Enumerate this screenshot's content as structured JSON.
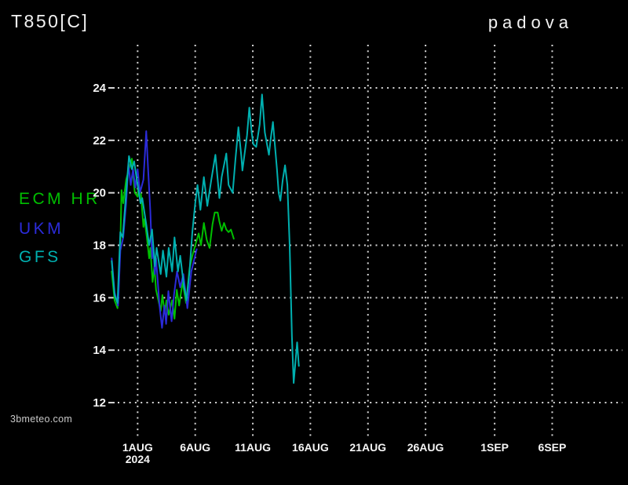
{
  "header": {
    "title": "T850[C]",
    "location": "padova"
  },
  "watermark": {
    "text": "3bmeteo.com"
  },
  "colors": {
    "background": "#000000",
    "grid": "#d6d6d6",
    "tick_text": "#f5f5f5",
    "title_text": "#f2f2f2",
    "ecm": "#00bf00",
    "ukm": "#2b2bd9",
    "gfs": "#00b0b0"
  },
  "legend": {
    "items": [
      {
        "id": "ecm",
        "label": "ECM HR",
        "color": "#00bf00"
      },
      {
        "id": "ukm",
        "label": "UKM",
        "color": "#2b2bd9"
      },
      {
        "id": "gfs",
        "label": "GFS",
        "color": "#00b0b0"
      }
    ]
  },
  "chart_data": {
    "type": "line",
    "title": "T850[C]",
    "subtitle": "padova",
    "xlabel": "",
    "ylabel": "",
    "grid": true,
    "legend_position": "left",
    "ylim": [
      10.6,
      25.6
    ],
    "y_ticks": [
      12,
      14,
      16,
      18,
      20,
      22,
      24
    ],
    "x_origin_note": "x values are days since 2024-07-30 00:00, derived from the 1AUG 2024 tick",
    "xlim_days": [
      -0.4,
      44.3
    ],
    "x_ticks": [
      {
        "label": "1AUG",
        "sublabel": "2024",
        "day": 2
      },
      {
        "label": "6AUG",
        "sublabel": "",
        "day": 7
      },
      {
        "label": "11AUG",
        "sublabel": "",
        "day": 12
      },
      {
        "label": "16AUG",
        "sublabel": "",
        "day": 17
      },
      {
        "label": "21AUG",
        "sublabel": "",
        "day": 22
      },
      {
        "label": "26AUG",
        "sublabel": "",
        "day": 27
      },
      {
        "label": "1SEP",
        "sublabel": "",
        "day": 33
      },
      {
        "label": "6SEP",
        "sublabel": "",
        "day": 38
      }
    ],
    "series": [
      {
        "name": "ECM HR",
        "color": "#00bf00",
        "points": [
          [
            -0.25,
            17.0
          ],
          [
            0,
            15.9
          ],
          [
            0.25,
            15.6
          ],
          [
            0.5,
            18.0
          ],
          [
            0.6,
            20.1
          ],
          [
            0.75,
            19.6
          ],
          [
            1.0,
            20.5
          ],
          [
            1.3,
            21.0
          ],
          [
            1.5,
            21.3
          ],
          [
            1.75,
            20.0
          ],
          [
            2.0,
            19.85
          ],
          [
            2.1,
            20.35
          ],
          [
            2.3,
            19.9
          ],
          [
            2.5,
            18.7
          ],
          [
            2.6,
            19.0
          ],
          [
            2.8,
            18.3
          ],
          [
            3.0,
            17.5
          ],
          [
            3.1,
            17.9
          ],
          [
            3.3,
            16.6
          ],
          [
            3.45,
            17.2
          ],
          [
            3.6,
            16.3
          ],
          [
            4.0,
            15.5
          ],
          [
            4.15,
            16.1
          ],
          [
            4.35,
            15.4
          ],
          [
            4.5,
            15.9
          ],
          [
            4.7,
            15.35
          ],
          [
            5.0,
            15.9
          ],
          [
            5.2,
            15.2
          ],
          [
            5.4,
            16.3
          ],
          [
            5.6,
            15.7
          ],
          [
            5.9,
            16.6
          ],
          [
            6.2,
            15.8
          ],
          [
            6.5,
            17.1
          ],
          [
            6.75,
            17.6
          ],
          [
            7.0,
            18.0
          ],
          [
            7.3,
            18.45
          ],
          [
            7.5,
            18.0
          ],
          [
            7.75,
            18.85
          ],
          [
            8.0,
            18.2
          ],
          [
            8.25,
            17.9
          ],
          [
            8.5,
            18.8
          ],
          [
            8.7,
            19.25
          ],
          [
            8.95,
            19.25
          ],
          [
            9.1,
            18.9
          ],
          [
            9.3,
            18.55
          ],
          [
            9.5,
            18.85
          ],
          [
            9.7,
            18.6
          ],
          [
            9.9,
            18.5
          ],
          [
            10.1,
            18.6
          ],
          [
            10.35,
            18.25
          ]
        ]
      },
      {
        "name": "UKM",
        "color": "#2b2bd9",
        "points": [
          [
            -0.25,
            17.5
          ],
          [
            0,
            16.2
          ],
          [
            0.3,
            15.7
          ],
          [
            0.5,
            17.8
          ],
          [
            0.75,
            18.3
          ],
          [
            1.0,
            19.6
          ],
          [
            1.2,
            21.1
          ],
          [
            1.4,
            20.3
          ],
          [
            1.6,
            20.9
          ],
          [
            1.8,
            20.2
          ],
          [
            2.0,
            20.9
          ],
          [
            2.2,
            20.0
          ],
          [
            2.5,
            20.5
          ],
          [
            2.75,
            22.35
          ],
          [
            2.9,
            21.0
          ],
          [
            3.1,
            19.3
          ],
          [
            3.25,
            17.5
          ],
          [
            3.35,
            18.0
          ],
          [
            3.5,
            16.9
          ],
          [
            3.6,
            17.5
          ],
          [
            3.75,
            16.6
          ],
          [
            3.9,
            15.7
          ],
          [
            4.12,
            14.85
          ],
          [
            4.33,
            15.7
          ],
          [
            4.47,
            15.0
          ],
          [
            4.67,
            16.25
          ],
          [
            4.95,
            15.1
          ],
          [
            5.15,
            16.1
          ],
          [
            5.42,
            17.0
          ],
          [
            5.7,
            16.4
          ],
          [
            5.97,
            16.9
          ],
          [
            6.32,
            15.6
          ],
          [
            6.66,
            17.0
          ],
          [
            7.13,
            17.85
          ]
        ]
      },
      {
        "name": "GFS",
        "color": "#00b0b0",
        "points": [
          [
            -0.25,
            17.4
          ],
          [
            0,
            16.1
          ],
          [
            0.25,
            15.8
          ],
          [
            0.5,
            18.5
          ],
          [
            0.7,
            18.3
          ],
          [
            1.0,
            20.0
          ],
          [
            1.25,
            21.4
          ],
          [
            1.5,
            20.9
          ],
          [
            1.7,
            21.2
          ],
          [
            2.0,
            20.3
          ],
          [
            2.25,
            19.6
          ],
          [
            2.4,
            19.8
          ],
          [
            2.75,
            18.8
          ],
          [
            3.0,
            18.0
          ],
          [
            3.25,
            18.6
          ],
          [
            3.5,
            17.2
          ],
          [
            3.65,
            17.9
          ],
          [
            4.0,
            16.9
          ],
          [
            4.2,
            17.8
          ],
          [
            4.5,
            16.8
          ],
          [
            4.7,
            17.9
          ],
          [
            5.0,
            17.0
          ],
          [
            5.2,
            18.3
          ],
          [
            5.5,
            17.0
          ],
          [
            5.7,
            17.6
          ],
          [
            6.0,
            16.5
          ],
          [
            6.25,
            15.9
          ],
          [
            6.5,
            17.0
          ],
          [
            6.75,
            18.5
          ],
          [
            7.0,
            19.6
          ],
          [
            7.2,
            20.3
          ],
          [
            7.45,
            19.35
          ],
          [
            7.75,
            20.6
          ],
          [
            8.05,
            19.5
          ],
          [
            8.4,
            20.5
          ],
          [
            8.75,
            21.45
          ],
          [
            9.1,
            19.8
          ],
          [
            9.3,
            20.6
          ],
          [
            9.7,
            21.5
          ],
          [
            9.9,
            20.3
          ],
          [
            10.25,
            20.0
          ],
          [
            10.5,
            21.3
          ],
          [
            10.75,
            22.5
          ],
          [
            11.0,
            21.4
          ],
          [
            11.1,
            20.85
          ],
          [
            11.5,
            22.2
          ],
          [
            11.7,
            23.25
          ],
          [
            11.9,
            22.3
          ],
          [
            12.05,
            21.85
          ],
          [
            12.3,
            21.75
          ],
          [
            12.6,
            22.6
          ],
          [
            12.8,
            23.75
          ],
          [
            13.05,
            22.3
          ],
          [
            13.15,
            22.05
          ],
          [
            13.4,
            21.45
          ],
          [
            13.55,
            22.05
          ],
          [
            13.75,
            22.7
          ],
          [
            14.1,
            20.9
          ],
          [
            14.25,
            20.0
          ],
          [
            14.4,
            19.7
          ],
          [
            14.6,
            20.5
          ],
          [
            14.8,
            21.05
          ],
          [
            15.0,
            20.3
          ],
          [
            15.2,
            18.0
          ],
          [
            15.4,
            14.5
          ],
          [
            15.55,
            12.75
          ],
          [
            15.85,
            14.3
          ],
          [
            16.0,
            13.4
          ]
        ]
      }
    ]
  }
}
